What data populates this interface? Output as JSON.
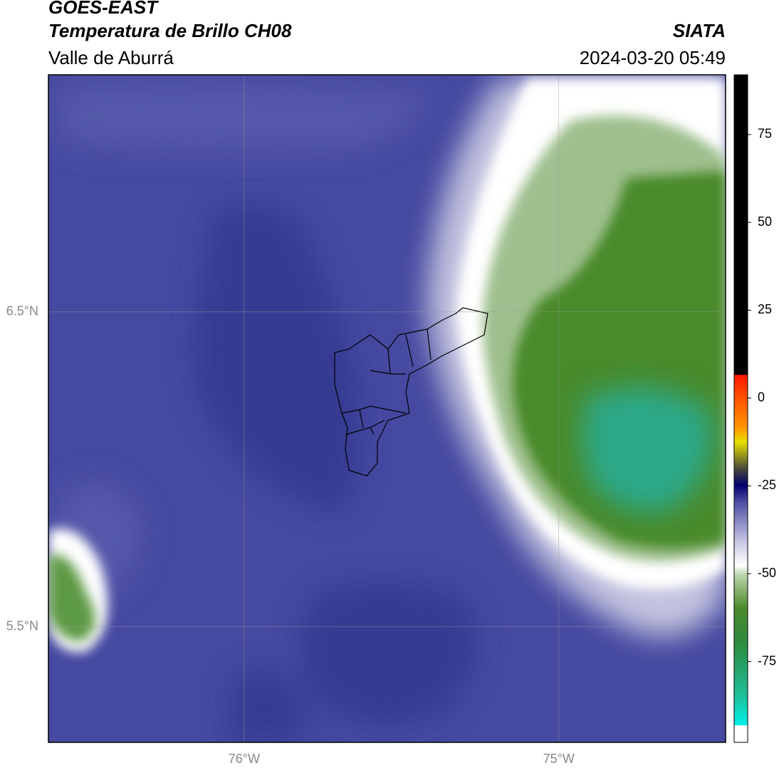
{
  "header": {
    "title": "GOES-EAST",
    "subtitle": "Temperatura de Brillo CH08",
    "region": "Valle de Aburrá",
    "source": "SIATA",
    "timestamp": "2024-03-20 05:49"
  },
  "map": {
    "xlim": [
      -76.622,
      -74.47
    ],
    "ylim": [
      5.133,
      7.253
    ],
    "xticks": [
      {
        "value": -76,
        "label": "76°W"
      },
      {
        "value": -75,
        "label": "75°W"
      }
    ],
    "yticks": [
      {
        "value": 5.5,
        "label": "5.5°N"
      },
      {
        "value": 6.5,
        "label": "6.5°N"
      }
    ]
  },
  "colorbar": {
    "lim": [
      -98,
      92
    ],
    "ticks": [
      -75,
      -50,
      -25,
      0,
      25,
      50,
      75
    ]
  }
}
